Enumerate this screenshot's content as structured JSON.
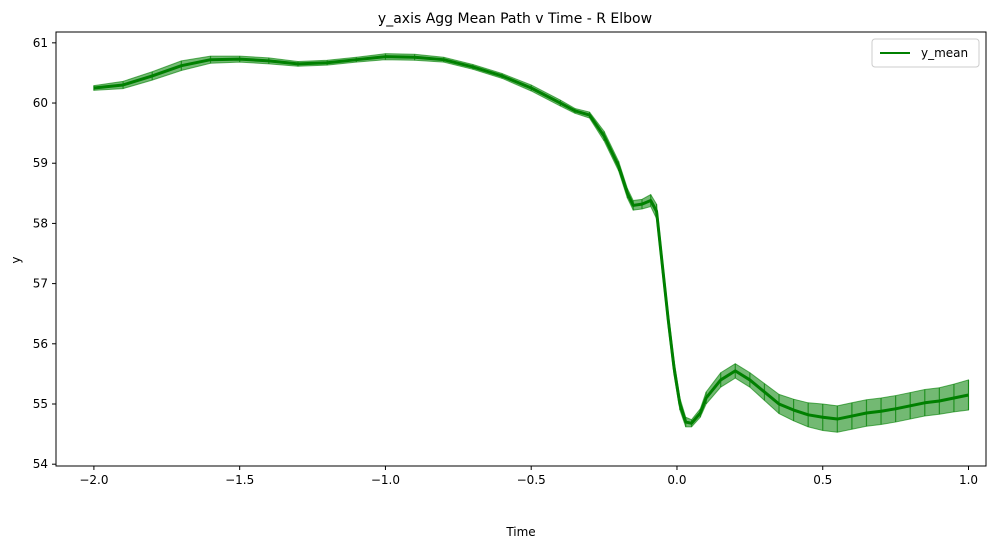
{
  "chart_data": {
    "type": "line",
    "title": "y_axis Agg Mean Path v Time - R Elbow",
    "xlabel": "Time",
    "ylabel": "y",
    "xlim": [
      -2.13,
      1.06
    ],
    "ylim": [
      53.97,
      61.18
    ],
    "xticks": [
      -2.0,
      -1.5,
      -1.0,
      -0.5,
      0.0,
      0.5,
      1.0
    ],
    "xtick_labels": [
      "−2.0",
      "−1.5",
      "−1.0",
      "−0.5",
      "0.0",
      "0.5",
      "1.0"
    ],
    "yticks": [
      54,
      55,
      56,
      57,
      58,
      59,
      60,
      61
    ],
    "ytick_labels": [
      "54",
      "55",
      "56",
      "57",
      "58",
      "59",
      "60",
      "61"
    ],
    "grid": false,
    "legend": {
      "position": "top-right",
      "entries": [
        "y_mean"
      ]
    },
    "series": [
      {
        "name": "y_mean",
        "color": "#008000",
        "error_band_color": "#008000",
        "x": [
          -2.0,
          -1.9,
          -1.8,
          -1.7,
          -1.6,
          -1.5,
          -1.4,
          -1.3,
          -1.2,
          -1.1,
          -1.0,
          -0.9,
          -0.8,
          -0.7,
          -0.6,
          -0.5,
          -0.4,
          -0.35,
          -0.3,
          -0.25,
          -0.2,
          -0.17,
          -0.15,
          -0.12,
          -0.09,
          -0.07,
          -0.05,
          -0.03,
          -0.01,
          0.01,
          0.03,
          0.05,
          0.08,
          0.1,
          0.15,
          0.2,
          0.25,
          0.3,
          0.35,
          0.4,
          0.45,
          0.5,
          0.55,
          0.6,
          0.65,
          0.7,
          0.75,
          0.8,
          0.85,
          0.9,
          0.95,
          1.0
        ],
        "y": [
          60.25,
          60.3,
          60.45,
          60.62,
          60.72,
          60.73,
          60.7,
          60.65,
          60.67,
          60.72,
          60.77,
          60.76,
          60.72,
          60.6,
          60.45,
          60.25,
          60.0,
          59.87,
          59.8,
          59.45,
          58.95,
          58.5,
          58.3,
          58.32,
          58.38,
          58.2,
          57.3,
          56.4,
          55.6,
          55.0,
          54.7,
          54.68,
          54.85,
          55.1,
          55.4,
          55.55,
          55.4,
          55.2,
          55.0,
          54.9,
          54.82,
          54.78,
          54.75,
          54.8,
          54.85,
          54.88,
          54.92,
          54.97,
          55.02,
          55.05,
          55.1,
          55.15
        ],
        "err": [
          0.04,
          0.06,
          0.07,
          0.08,
          0.06,
          0.05,
          0.05,
          0.04,
          0.04,
          0.04,
          0.05,
          0.05,
          0.04,
          0.04,
          0.04,
          0.05,
          0.05,
          0.04,
          0.05,
          0.08,
          0.08,
          0.08,
          0.08,
          0.08,
          0.1,
          0.12,
          0.12,
          0.12,
          0.12,
          0.1,
          0.08,
          0.06,
          0.07,
          0.1,
          0.12,
          0.12,
          0.12,
          0.14,
          0.16,
          0.18,
          0.2,
          0.22,
          0.22,
          0.22,
          0.22,
          0.22,
          0.22,
          0.22,
          0.22,
          0.22,
          0.23,
          0.25
        ]
      }
    ]
  }
}
